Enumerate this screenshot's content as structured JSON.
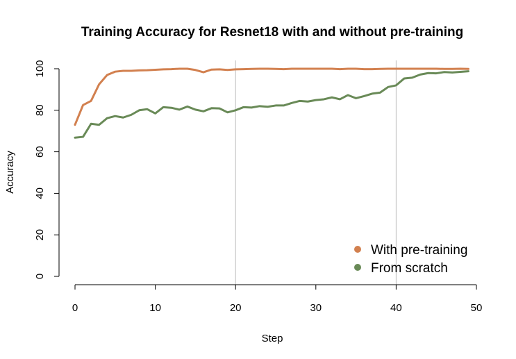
{
  "chart_data": {
    "type": "line",
    "title": "Training Accuracy for Resnet18 with and without pre-training",
    "xlabel": "Step",
    "ylabel": "Accuracy",
    "xlim": [
      0,
      50
    ],
    "ylim": [
      0,
      100
    ],
    "x_ticks": [
      0,
      10,
      20,
      30,
      40,
      50
    ],
    "y_ticks": [
      0,
      20,
      40,
      60,
      80,
      100
    ],
    "vertical_reference_lines": [
      20,
      40
    ],
    "legend_position": "bottom-right",
    "x": [
      0,
      1,
      2,
      3,
      4,
      5,
      6,
      7,
      8,
      9,
      10,
      11,
      12,
      13,
      14,
      15,
      16,
      17,
      18,
      19,
      20,
      21,
      22,
      23,
      24,
      25,
      26,
      27,
      28,
      29,
      30,
      31,
      32,
      33,
      34,
      35,
      36,
      37,
      38,
      39,
      40,
      41,
      42,
      43,
      44,
      45,
      46,
      47,
      48,
      49
    ],
    "series": [
      {
        "name": "With pre-training",
        "color": "#D2804F",
        "values": [
          73.0,
          82.5,
          84.5,
          92.5,
          97.0,
          98.6,
          99.0,
          99.0,
          99.2,
          99.3,
          99.5,
          99.7,
          99.8,
          100.0,
          100.0,
          99.4,
          98.3,
          99.6,
          99.7,
          99.4,
          99.7,
          99.8,
          99.9,
          100.0,
          100.0,
          99.9,
          99.8,
          100.0,
          100.0,
          100.0,
          100.0,
          100.0,
          100.0,
          99.8,
          100.0,
          100.0,
          99.8,
          99.8,
          99.9,
          100.0,
          100.0,
          100.0,
          100.0,
          100.0,
          100.0,
          100.0,
          99.9,
          99.9,
          100.0,
          99.9
        ]
      },
      {
        "name": "From scratch",
        "color": "#698A57",
        "values": [
          66.8,
          67.2,
          73.5,
          73.0,
          76.2,
          77.2,
          76.5,
          77.8,
          80.0,
          80.5,
          78.5,
          81.5,
          81.2,
          80.3,
          81.8,
          80.3,
          79.5,
          81.0,
          80.9,
          79.0,
          80.0,
          81.5,
          81.3,
          82.0,
          81.7,
          82.3,
          82.3,
          83.5,
          84.5,
          84.2,
          84.9,
          85.3,
          86.2,
          85.3,
          87.3,
          85.8,
          86.8,
          88.0,
          88.5,
          91.2,
          92.0,
          95.3,
          95.7,
          97.2,
          97.9,
          97.8,
          98.4,
          98.2,
          98.5,
          98.8
        ]
      }
    ]
  }
}
